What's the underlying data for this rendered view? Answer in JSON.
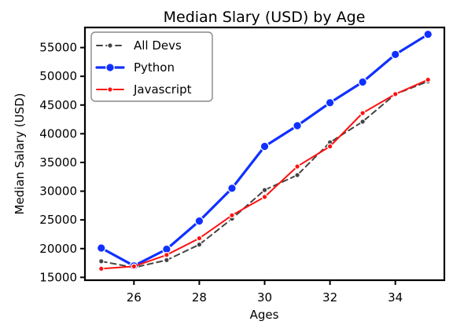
{
  "chart_data": {
    "type": "line",
    "title": "Median Slary (USD) by Age",
    "xlabel": "Ages",
    "ylabel": "Median Salary (USD)",
    "x": [
      25,
      26,
      27,
      28,
      29,
      30,
      31,
      32,
      33,
      34,
      35
    ],
    "xlim": [
      24.5,
      35.5
    ],
    "ylim": [
      14500,
      58500
    ],
    "xticks": [
      26,
      28,
      30,
      32,
      34
    ],
    "yticks": [
      15000,
      20000,
      25000,
      30000,
      35000,
      40000,
      45000,
      50000,
      55000
    ],
    "grid": false,
    "legend_position": "top-left",
    "series": [
      {
        "name": "All Devs",
        "values": [
          17800,
          16700,
          18000,
          20700,
          25200,
          30200,
          32800,
          38500,
          42100,
          46900,
          49100
        ],
        "color": "#444444",
        "style": "dashed",
        "marker": "small-dot"
      },
      {
        "name": "Python",
        "values": [
          20100,
          17000,
          19900,
          24800,
          30500,
          37800,
          41400,
          45400,
          49000,
          53800,
          57300
        ],
        "color": "#1030ff",
        "style": "solid-thick",
        "marker": "large-dot"
      },
      {
        "name": "Javascript",
        "values": [
          16500,
          16900,
          18900,
          21800,
          25800,
          29000,
          34300,
          37800,
          43600,
          46900,
          49400
        ],
        "color": "#ff1010",
        "style": "solid",
        "marker": "small-dot"
      }
    ]
  }
}
